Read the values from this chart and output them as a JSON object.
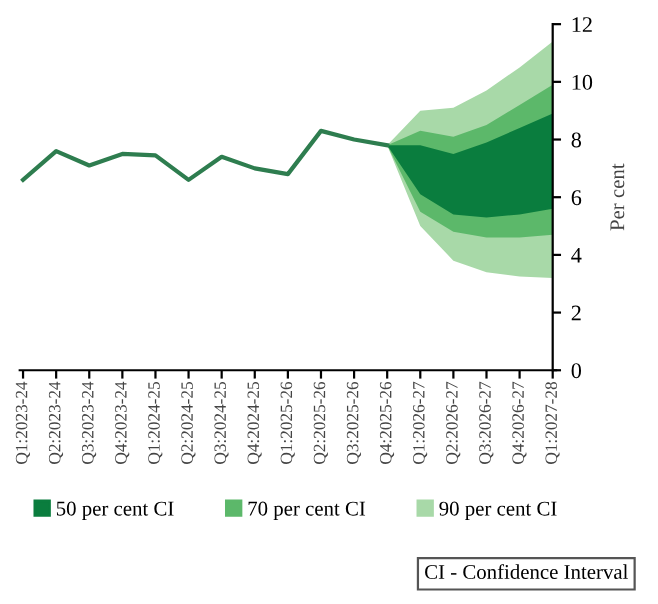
{
  "chart_data": {
    "type": "line",
    "categories": [
      "Q1:2023-24",
      "Q2:2023-24",
      "Q3:2023-24",
      "Q4:2023-24",
      "Q1:2024-25",
      "Q2:2024-25",
      "Q3:2024-25",
      "Q4:2024-25",
      "Q1:2025-26",
      "Q2:2025-26",
      "Q3:2025-26",
      "Q4:2025-26",
      "Q1:2026-27",
      "Q2:2026-27",
      "Q3:2026-27",
      "Q4:2026-27",
      "Q1:2027-28"
    ],
    "series": [
      {
        "color": "#2e7d4f",
        "values": [
          6.6,
          7.6,
          7.1,
          7.5,
          7.45,
          6.6,
          7.4,
          7.0,
          6.8,
          8.3,
          8.0,
          7.8,
          null,
          null,
          null,
          null,
          null
        ]
      },
      {
        "name": "90 per cent CI",
        "type": "area",
        "color": "#a8d9a8",
        "values": [
          null,
          null,
          null,
          null,
          null,
          null,
          null,
          null,
          null,
          null,
          null,
          null,
          null,
          null,
          null,
          null,
          null
        ],
        "lower": [
          null,
          null,
          null,
          null,
          null,
          null,
          null,
          null,
          null,
          null,
          null,
          7.8,
          5.0,
          3.8,
          3.4,
          3.25,
          3.2
        ],
        "upper": [
          null,
          null,
          null,
          null,
          null,
          null,
          null,
          null,
          null,
          null,
          null,
          7.8,
          9.0,
          9.1,
          9.7,
          10.5,
          11.4
        ]
      },
      {
        "name": "70 per cent CI",
        "type": "area",
        "color": "#5cb86a",
        "values": [
          null,
          null,
          null,
          null,
          null,
          null,
          null,
          null,
          null,
          null,
          null,
          null,
          null,
          null,
          null,
          null,
          null
        ],
        "lower": [
          null,
          null,
          null,
          null,
          null,
          null,
          null,
          null,
          null,
          null,
          null,
          7.8,
          5.5,
          4.8,
          4.6,
          4.6,
          4.7
        ],
        "upper": [
          null,
          null,
          null,
          null,
          null,
          null,
          null,
          null,
          null,
          null,
          null,
          7.8,
          8.3,
          8.1,
          8.5,
          9.2,
          9.9
        ]
      },
      {
        "name": "50 per cent CI",
        "type": "area",
        "color": "#0a7d3e",
        "values": [
          null,
          null,
          null,
          null,
          null,
          null,
          null,
          null,
          null,
          null,
          null,
          null,
          null,
          null,
          null,
          null,
          null
        ],
        "lower": [
          null,
          null,
          null,
          null,
          null,
          null,
          null,
          null,
          null,
          null,
          null,
          7.8,
          6.1,
          5.4,
          5.3,
          5.4,
          5.6
        ],
        "upper": [
          null,
          null,
          null,
          null,
          null,
          null,
          null,
          null,
          null,
          null,
          null,
          7.8,
          7.8,
          7.5,
          7.9,
          8.4,
          8.9
        ]
      }
    ],
    "ylabel": "Per cent",
    "ylim": [
      0,
      12
    ],
    "yticks": [
      0,
      2,
      4,
      6,
      8,
      10,
      12
    ],
    "grid": false,
    "legend": "bottom",
    "annotations": [
      "CI - Confidence Interval"
    ]
  }
}
